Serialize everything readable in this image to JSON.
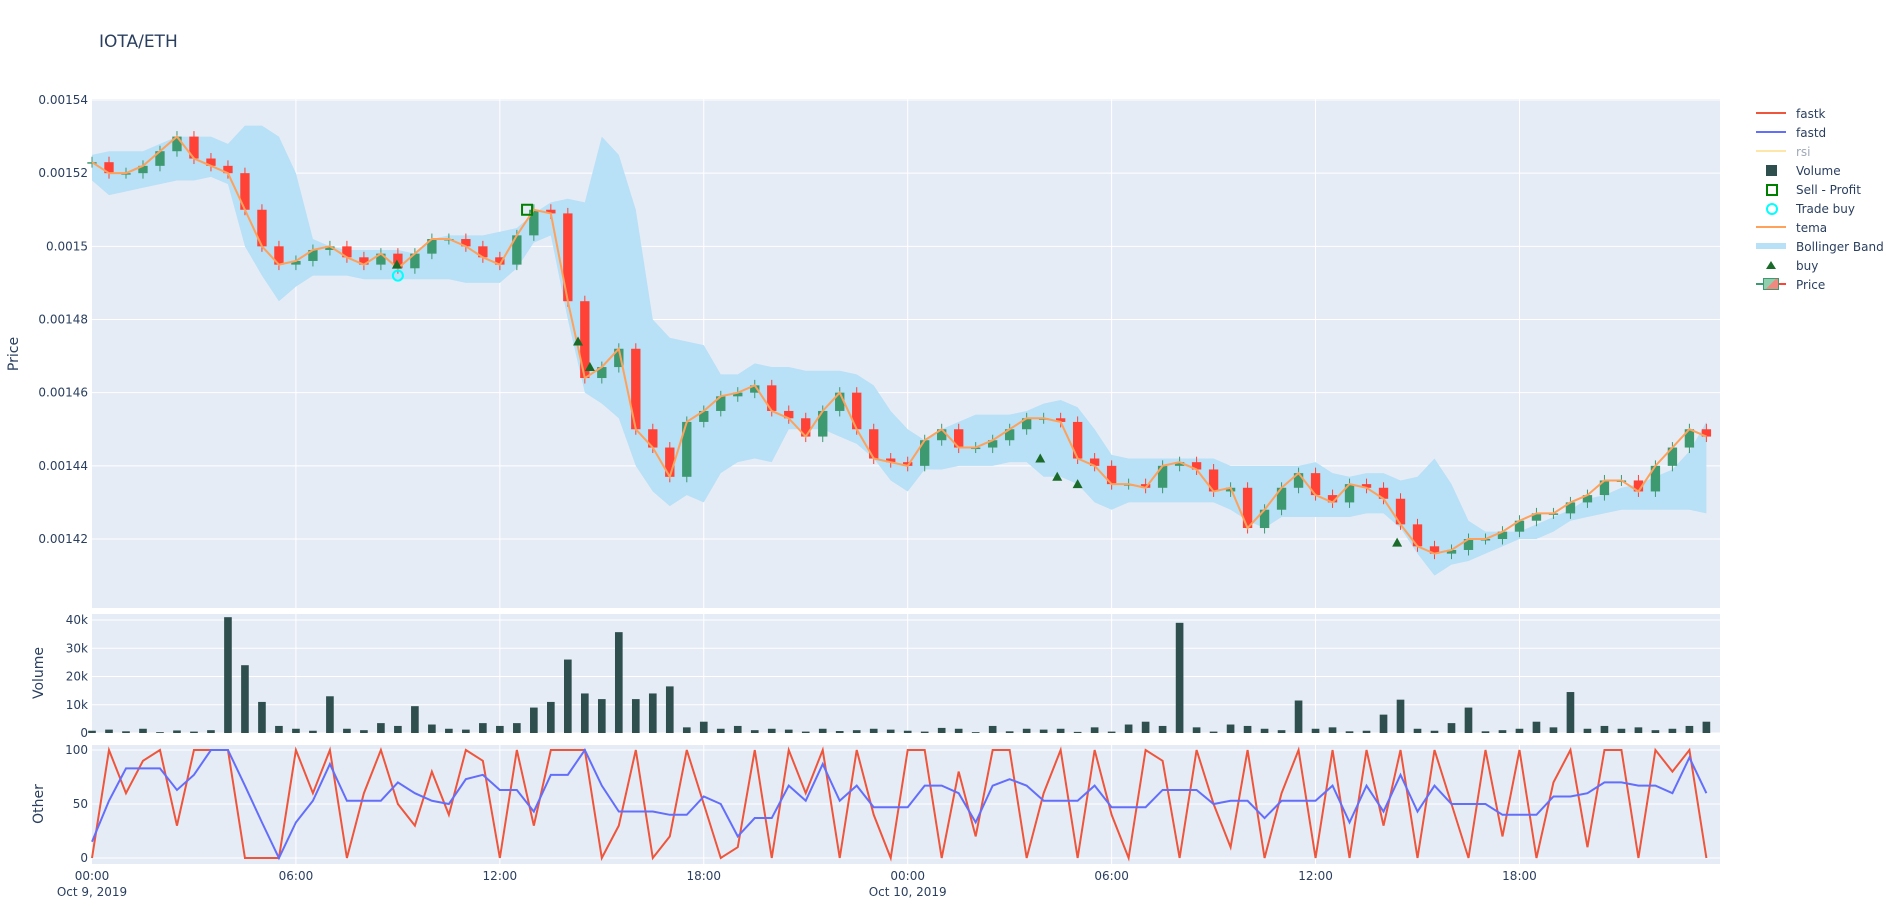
{
  "title": "IOTA/ETH",
  "colors": {
    "increasing": "#3D9970",
    "decreasing": "#FF4136",
    "bollinger": "#b8e0f6",
    "tema": "#FFA15A",
    "fastk": "#EF553B",
    "fastd": "#636EFA",
    "rsi": "#FECB52",
    "volume": "#2F4F4F",
    "buy": "#1a6b2a",
    "sell_profit": "#008000",
    "trade_buy": "#00FFFF",
    "plot_bg": "#E5ECF6",
    "grid": "#FFFFFF"
  },
  "legend": [
    {
      "name": "fastk",
      "symbol": "line",
      "color": "#EF553B"
    },
    {
      "name": "fastd",
      "symbol": "line",
      "color": "#636EFA"
    },
    {
      "name": "rsi",
      "symbol": "line",
      "color": "#FECB52",
      "hidden": true
    },
    {
      "name": "Volume",
      "symbol": "square",
      "color": "#2F4F4F"
    },
    {
      "name": "Sell - Profit",
      "symbol": "square-open",
      "color": "#008000"
    },
    {
      "name": "Trade buy",
      "symbol": "circle-open",
      "color": "#00FFFF"
    },
    {
      "name": "tema",
      "symbol": "line",
      "color": "#FFA15A"
    },
    {
      "name": "Bollinger Band",
      "symbol": "band",
      "color": "#b8e0f6"
    },
    {
      "name": "buy",
      "symbol": "triangle-up",
      "color": "#1a6b2a"
    },
    {
      "name": "Price",
      "symbol": "candle",
      "color": "#3D9970"
    }
  ],
  "chart_data": [
    {
      "type": "candlestick",
      "ylabel": "Price",
      "ylim": [
        0.001401,
        0.00154
      ],
      "yticks": [
        "0.00142",
        "0.00144",
        "0.00146",
        "0.00148",
        "0.0015",
        "0.00152",
        "0.00154"
      ],
      "grid": true,
      "x_hours_from_start_step": 0.5,
      "close": [
        0.001523,
        0.00152,
        0.00152,
        0.001522,
        0.001526,
        0.00153,
        0.001524,
        0.001522,
        0.00152,
        0.00151,
        0.0015,
        0.001495,
        0.001496,
        0.001499,
        0.0015,
        0.001497,
        0.001495,
        0.001498,
        0.001494,
        0.001498,
        0.001502,
        0.001502,
        0.0015,
        0.001497,
        0.001495,
        0.001503,
        0.00151,
        0.001509,
        0.001485,
        0.001464,
        0.001467,
        0.001472,
        0.00145,
        0.001445,
        0.001437,
        0.001452,
        0.001455,
        0.001459,
        0.00146,
        0.001462,
        0.001455,
        0.001453,
        0.001448,
        0.001455,
        0.00146,
        0.00145,
        0.001442,
        0.001441,
        0.00144,
        0.001447,
        0.00145,
        0.001445,
        0.001445,
        0.001447,
        0.00145,
        0.001453,
        0.001453,
        0.001452,
        0.001442,
        0.00144,
        0.001435,
        0.001435,
        0.001434,
        0.00144,
        0.001441,
        0.001439,
        0.001433,
        0.001434,
        0.001423,
        0.001428,
        0.001434,
        0.001438,
        0.001432,
        0.00143,
        0.001435,
        0.001434,
        0.001431,
        0.001424,
        0.001418,
        0.001416,
        0.001417,
        0.00142,
        0.00142,
        0.001422,
        0.001425,
        0.001427,
        0.001427,
        0.00143,
        0.001432,
        0.001436,
        0.001436,
        0.001433,
        0.00144,
        0.001445,
        0.00145,
        0.001448
      ],
      "bb_upper": [
        0.001525,
        0.001526,
        0.001526,
        0.001526,
        0.001528,
        0.00153,
        0.00153,
        0.00153,
        0.001528,
        0.001533,
        0.001533,
        0.00153,
        0.00152,
        0.001502,
        0.0015,
        0.001499,
        0.001499,
        0.001499,
        0.001499,
        0.001498,
        0.001502,
        0.001503,
        0.001503,
        0.001503,
        0.001504,
        0.001505,
        0.001509,
        0.001512,
        0.001513,
        0.001512,
        0.00153,
        0.001525,
        0.00151,
        0.00148,
        0.001475,
        0.001474,
        0.001473,
        0.001465,
        0.001465,
        0.001468,
        0.001467,
        0.001467,
        0.001466,
        0.001466,
        0.001466,
        0.001465,
        0.001462,
        0.001455,
        0.00145,
        0.001447,
        0.00145,
        0.001452,
        0.001454,
        0.001454,
        0.001454,
        0.001455,
        0.001457,
        0.001458,
        0.001456,
        0.00145,
        0.001443,
        0.001442,
        0.001442,
        0.001442,
        0.001442,
        0.001442,
        0.001442,
        0.00144,
        0.00144,
        0.00144,
        0.00144,
        0.00144,
        0.001441,
        0.001438,
        0.001437,
        0.001438,
        0.001438,
        0.001436,
        0.001437,
        0.001442,
        0.001435,
        0.001425,
        0.001422,
        0.001422,
        0.001422,
        0.001424,
        0.001426,
        0.001428,
        0.001431,
        0.001432,
        0.001434,
        0.001435,
        0.001437,
        0.001439,
        0.001444,
        0.001452
      ],
      "bb_lower": [
        0.001518,
        0.001514,
        0.001515,
        0.001516,
        0.001517,
        0.001518,
        0.001518,
        0.001519,
        0.001517,
        0.0015,
        0.001492,
        0.001485,
        0.001489,
        0.001492,
        0.001492,
        0.001492,
        0.001491,
        0.001491,
        0.001491,
        0.001491,
        0.001491,
        0.001491,
        0.00149,
        0.00149,
        0.00149,
        0.001494,
        0.001501,
        0.001503,
        0.00148,
        0.00146,
        0.001457,
        0.001453,
        0.00144,
        0.001433,
        0.001429,
        0.001432,
        0.00143,
        0.001438,
        0.001441,
        0.001442,
        0.001441,
        0.00145,
        0.00145,
        0.00145,
        0.001448,
        0.001446,
        0.001442,
        0.001436,
        0.001433,
        0.001439,
        0.001439,
        0.00144,
        0.00144,
        0.00144,
        0.001441,
        0.001441,
        0.001437,
        0.001437,
        0.001435,
        0.00143,
        0.001428,
        0.00143,
        0.00143,
        0.00143,
        0.00143,
        0.00143,
        0.00143,
        0.001428,
        0.001425,
        0.001423,
        0.001426,
        0.001426,
        0.001426,
        0.001426,
        0.001426,
        0.001427,
        0.001427,
        0.001423,
        0.001416,
        0.00141,
        0.001413,
        0.001414,
        0.001416,
        0.001418,
        0.00142,
        0.00142,
        0.001422,
        0.001425,
        0.001426,
        0.001427,
        0.001428,
        0.001428,
        0.001428,
        0.001428,
        0.001428,
        0.001427
      ],
      "buy": [
        {
          "h": 8.97,
          "price": 0.001495
        },
        {
          "h": 14.3,
          "price": 0.001474
        },
        {
          "h": 14.65,
          "price": 0.001467
        },
        {
          "h": 27.9,
          "price": 0.001442
        },
        {
          "h": 28.4,
          "price": 0.001437
        },
        {
          "h": 29.0,
          "price": 0.001435
        },
        {
          "h": 38.4,
          "price": 0.001419
        }
      ],
      "trade_buy": [
        {
          "h": 9.0,
          "price": 0.001492
        }
      ],
      "sell_profit": [
        {
          "h": 12.8,
          "price": 0.00151
        }
      ]
    },
    {
      "type": "bar",
      "ylabel": "Volume",
      "ylim": [
        0,
        40000
      ],
      "yticks": [
        "0",
        "10k",
        "20k",
        "30k",
        "40k"
      ],
      "values": [
        800,
        1200,
        600,
        1500,
        300,
        900,
        500,
        1000,
        41000,
        24000,
        11000,
        2500,
        1500,
        800,
        13000,
        1500,
        1000,
        3500,
        2500,
        9500,
        3000,
        1500,
        1200,
        3500,
        2500,
        3500,
        9000,
        11000,
        26000,
        14000,
        12000,
        35700,
        12000,
        14000,
        16500,
        2000,
        4000,
        1500,
        2500,
        1000,
        1500,
        1200,
        500,
        1500,
        700,
        1000,
        1500,
        1200,
        800,
        500,
        1800,
        1500,
        300,
        2500,
        600,
        1500,
        1200,
        1500,
        400,
        2000,
        500,
        3000,
        4000,
        2500,
        39000,
        2000,
        500,
        3000,
        2500,
        1500,
        1000,
        11500,
        1500,
        2000,
        600,
        800,
        6500,
        11800,
        1500,
        800,
        3500,
        9000,
        600,
        1000,
        1500,
        4000,
        2000,
        14500,
        1500,
        2500,
        1500,
        2000,
        1000,
        1500,
        2500,
        4000
      ]
    },
    {
      "type": "line",
      "ylabel": "Other",
      "ylim": [
        0,
        100
      ],
      "yticks": [
        "0",
        "50",
        "100"
      ],
      "xticks": [
        {
          "h": 0,
          "label": "00:00",
          "sub": "Oct 9, 2019"
        },
        {
          "h": 6,
          "label": "06:00"
        },
        {
          "h": 12,
          "label": "12:00"
        },
        {
          "h": 18,
          "label": "18:00"
        },
        {
          "h": 24,
          "label": "00:00",
          "sub": "Oct 10, 2019"
        },
        {
          "h": 30,
          "label": "06:00"
        },
        {
          "h": 36,
          "label": "12:00"
        },
        {
          "h": 42,
          "label": "18:00"
        }
      ],
      "series": [
        {
          "name": "fastk",
          "values": [
            0,
            100,
            60,
            90,
            100,
            30,
            100,
            100,
            100,
            0,
            0,
            0,
            100,
            60,
            100,
            0,
            60,
            100,
            50,
            30,
            80,
            40,
            100,
            90,
            0,
            100,
            30,
            100,
            100,
            100,
            0,
            30,
            100,
            0,
            20,
            100,
            50,
            0,
            10,
            100,
            0,
            100,
            60,
            100,
            0,
            100,
            40,
            0,
            100,
            100,
            0,
            80,
            20,
            100,
            100,
            0,
            60,
            100,
            0,
            100,
            40,
            0,
            100,
            90,
            0,
            100,
            50,
            10,
            100,
            0,
            60,
            100,
            0,
            100,
            0,
            100,
            30,
            100,
            0,
            100,
            50,
            0,
            100,
            20,
            100,
            0,
            70,
            100,
            10,
            100,
            100,
            0,
            100,
            80,
            100,
            0
          ]
        },
        {
          "name": "fastd",
          "values": [
            15,
            53,
            83,
            83,
            83,
            63,
            77,
            100,
            100,
            67,
            33,
            0,
            33,
            53,
            87,
            53,
            53,
            53,
            70,
            60,
            53,
            50,
            73,
            77,
            63,
            63,
            43,
            77,
            77,
            100,
            67,
            43,
            43,
            43,
            40,
            40,
            57,
            50,
            20,
            37,
            37,
            67,
            53,
            87,
            53,
            67,
            47,
            47,
            47,
            67,
            67,
            60,
            33,
            67,
            73,
            67,
            53,
            53,
            53,
            67,
            47,
            47,
            47,
            63,
            63,
            63,
            50,
            53,
            53,
            37,
            53,
            53,
            53,
            67,
            33,
            67,
            43,
            77,
            43,
            67,
            50,
            50,
            50,
            40,
            40,
            40,
            57,
            57,
            60,
            70,
            70,
            67,
            67,
            60,
            93,
            60
          ]
        }
      ]
    }
  ]
}
